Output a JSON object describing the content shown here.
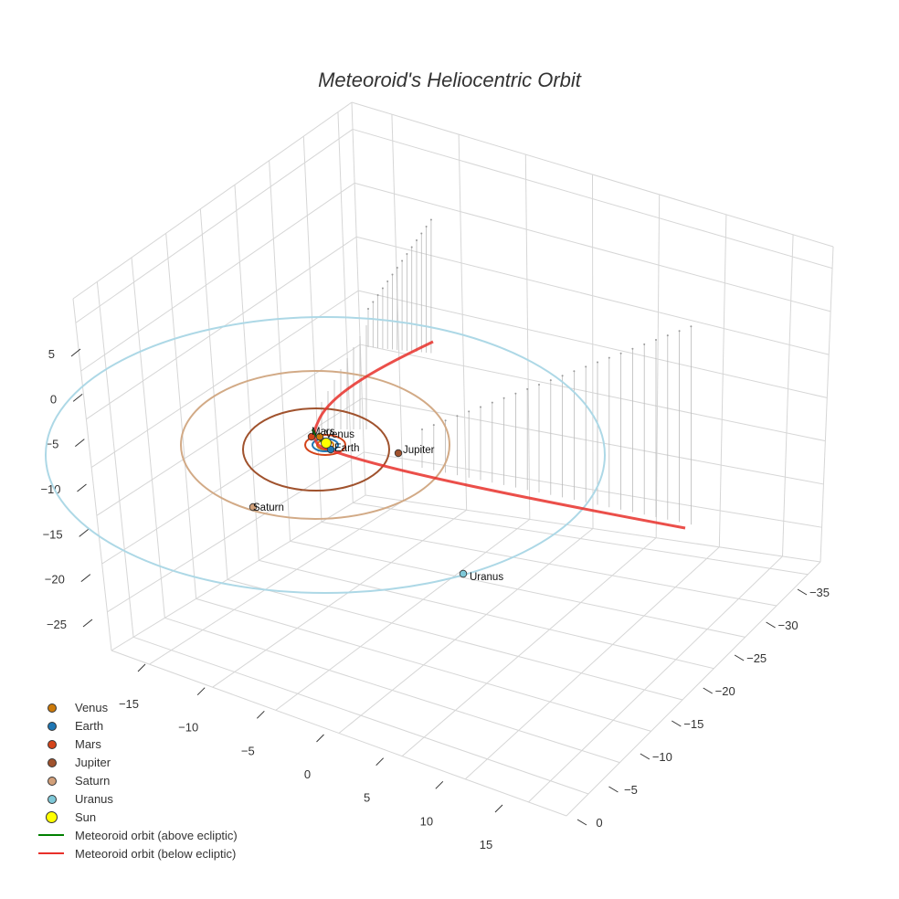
{
  "chart_data": {
    "type": "scatter3d",
    "title": "Meteoroid's Heliocentric Orbit",
    "axes": {
      "x": {
        "ticks": [
          -15,
          -10,
          -5,
          0,
          5,
          10,
          15
        ],
        "range": [
          -18,
          18
        ]
      },
      "y": {
        "ticks": [
          -35,
          -30,
          -25,
          -20,
          -15,
          -10,
          -5,
          0
        ],
        "range": [
          -37,
          2
        ]
      },
      "z": {
        "ticks": [
          5,
          0,
          -5,
          -10,
          -15,
          -20,
          -25
        ],
        "range": [
          -28,
          8
        ]
      }
    },
    "planets": [
      {
        "name": "Venus",
        "color": "#cc7a0a",
        "label": "Venus"
      },
      {
        "name": "Earth",
        "color": "#1f77b4",
        "label": "Earth"
      },
      {
        "name": "Mars",
        "color": "#d4441a",
        "label": "Mars"
      },
      {
        "name": "Jupiter",
        "color": "#a0522d",
        "label": "Jupiter"
      },
      {
        "name": "Saturn",
        "color": "#d2a07a",
        "label": "Saturn"
      },
      {
        "name": "Uranus",
        "color": "#7ec8d8",
        "label": "Uranus"
      }
    ],
    "orbits": [
      {
        "name": "Venus",
        "color": "#cc7a0a"
      },
      {
        "name": "Earth",
        "color": "#1f77b4"
      },
      {
        "name": "Mars",
        "color": "#d4441a"
      },
      {
        "name": "Jupiter",
        "color": "#a0522d"
      },
      {
        "name": "Saturn",
        "color": "#d2aa86"
      },
      {
        "name": "Uranus",
        "color": "#add8e6"
      }
    ],
    "sun": {
      "name": "Sun",
      "color": "#ffff00"
    },
    "meteoroid": {
      "above_color": "#008000",
      "below_color": "#e8302a"
    },
    "legend": [
      {
        "label": "Venus",
        "kind": "marker",
        "color": "#cc7a0a"
      },
      {
        "label": "Earth",
        "kind": "marker",
        "color": "#1f77b4"
      },
      {
        "label": "Mars",
        "kind": "marker",
        "color": "#d4441a"
      },
      {
        "label": "Jupiter",
        "kind": "marker",
        "color": "#a0522d"
      },
      {
        "label": "Saturn",
        "kind": "marker",
        "color": "#d2a07a"
      },
      {
        "label": "Uranus",
        "kind": "marker",
        "color": "#7ec8d8"
      },
      {
        "label": "Sun",
        "kind": "bigmarker",
        "color": "#ffff00"
      },
      {
        "label": "Meteoroid orbit (above ecliptic)",
        "kind": "line",
        "color": "#008000"
      },
      {
        "label": "Meteoroid orbit (below ecliptic)",
        "kind": "line",
        "color": "#e8302a"
      }
    ]
  }
}
